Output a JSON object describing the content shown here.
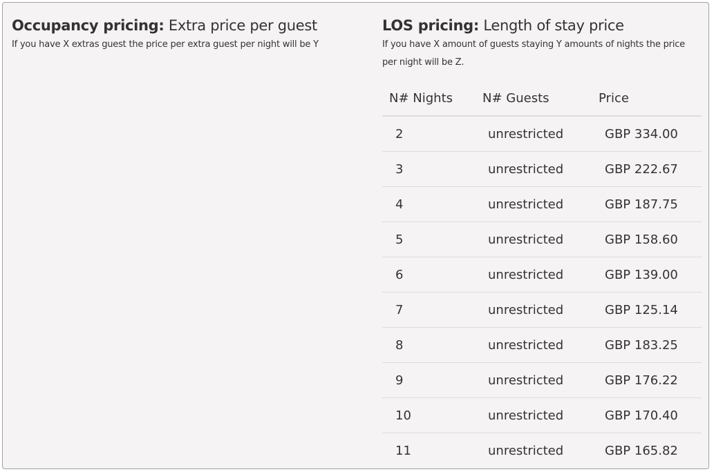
{
  "occupancy": {
    "title_bold": "Occupancy pricing:",
    "title_rest": " Extra price per guest",
    "description": "If you have X extras guest the price per extra guest per night will be Y"
  },
  "los": {
    "title_bold": "LOS pricing:",
    "title_rest": " Length of stay price",
    "description": "If you have X amount of guests staying Y amounts of nights the price per night will be Z.",
    "columns": [
      "N# Nights",
      "N# Guests",
      "Price"
    ],
    "rows": [
      {
        "nights": "2",
        "guests": "unrestricted",
        "price": "GBP 334.00"
      },
      {
        "nights": "3",
        "guests": "unrestricted",
        "price": "GBP 222.67"
      },
      {
        "nights": "4",
        "guests": "unrestricted",
        "price": "GBP 187.75"
      },
      {
        "nights": "5",
        "guests": "unrestricted",
        "price": "GBP 158.60"
      },
      {
        "nights": "6",
        "guests": "unrestricted",
        "price": "GBP 139.00"
      },
      {
        "nights": "7",
        "guests": "unrestricted",
        "price": "GBP 125.14"
      },
      {
        "nights": "8",
        "guests": "unrestricted",
        "price": "GBP 183.25"
      },
      {
        "nights": "9",
        "guests": "unrestricted",
        "price": "GBP 176.22"
      },
      {
        "nights": "10",
        "guests": "unrestricted",
        "price": "GBP 170.40"
      },
      {
        "nights": "11",
        "guests": "unrestricted",
        "price": "GBP 165.82"
      }
    ]
  }
}
